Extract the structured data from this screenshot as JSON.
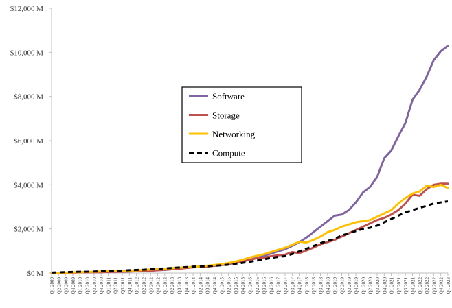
{
  "chart_data": {
    "type": "line",
    "title": "",
    "xlabel": "",
    "ylabel": "",
    "ylim": [
      0,
      12000
    ],
    "y_ticks": [
      {
        "value": 0,
        "label": "$0 M"
      },
      {
        "value": 2000,
        "label": "$2,000 M"
      },
      {
        "value": 4000,
        "label": "$4,000 M"
      },
      {
        "value": 6000,
        "label": "$6,000 M"
      },
      {
        "value": 8000,
        "label": "$8,000 M"
      },
      {
        "value": 10000,
        "label": "$10,000 M"
      },
      {
        "value": 12000,
        "label": "$12,000 M"
      }
    ],
    "grid": false,
    "legend_position": "center",
    "categories": [
      "Q1 2009",
      "Q2 2009",
      "Q3 2009",
      "Q4 2009",
      "Q1 2010",
      "Q2 2010",
      "Q3 2010",
      "Q4 2010",
      "Q1 2011",
      "Q2 2011",
      "Q3 2011",
      "Q4 2011",
      "Q1 2012",
      "Q2 2012",
      "Q3 2012",
      "Q4 2012",
      "Q1 2013",
      "Q2 2013",
      "Q3 2013",
      "Q4 2013",
      "Q1 2014",
      "Q2 2014",
      "Q3 2014",
      "Q4 2014",
      "Q1 2015",
      "Q2 2015",
      "Q3 2015",
      "Q4 2015",
      "Q1 2016",
      "Q2 2016",
      "Q3 2016",
      "Q4 2016",
      "Q1 2017",
      "Q2 2017",
      "Q3 2017",
      "Q4 2017",
      "Q1 2018",
      "Q2 2018",
      "Q3 2018",
      "Q4 2018",
      "Q1 2019",
      "Q2 2019",
      "Q3 2019",
      "Q4 2019",
      "Q1 2020",
      "Q2 2020",
      "Q3 2020",
      "Q4 2020",
      "Q1 2021",
      "Q2 2021",
      "Q3 2021",
      "Q4 2021",
      "Q1 2022",
      "Q2 2022",
      "Q3 2022",
      "Q4 2022",
      "Q1 2023"
    ],
    "series": [
      {
        "name": "Software",
        "color": "#8064A2",
        "dash": "solid",
        "values": [
          0,
          0,
          10,
          20,
          30,
          30,
          40,
          40,
          50,
          60,
          60,
          70,
          80,
          90,
          110,
          130,
          140,
          170,
          200,
          230,
          260,
          280,
          300,
          330,
          360,
          400,
          460,
          520,
          600,
          680,
          780,
          880,
          980,
          1080,
          1230,
          1400,
          1600,
          1850,
          2100,
          2350,
          2600,
          2650,
          2850,
          3200,
          3650,
          3900,
          4350,
          5200,
          5550,
          6200,
          6800,
          7850,
          8300,
          8900,
          9650,
          10050,
          10300
        ]
      },
      {
        "name": "Storage",
        "color": "#C0504D",
        "dash": "solid",
        "values": [
          0,
          0,
          10,
          20,
          30,
          30,
          40,
          40,
          50,
          60,
          60,
          70,
          80,
          90,
          100,
          130,
          150,
          180,
          200,
          230,
          260,
          270,
          290,
          330,
          370,
          420,
          470,
          530,
          600,
          670,
          700,
          760,
          800,
          830,
          950,
          900,
          1020,
          1150,
          1300,
          1400,
          1500,
          1650,
          1800,
          1950,
          2100,
          2250,
          2400,
          2500,
          2650,
          2850,
          3150,
          3550,
          3500,
          3800,
          4000,
          4050,
          4050
        ]
      },
      {
        "name": "Networking",
        "color": "#FFC000",
        "dash": "solid",
        "values": [
          0,
          10,
          20,
          30,
          40,
          50,
          60,
          70,
          80,
          90,
          100,
          110,
          120,
          140,
          160,
          180,
          200,
          220,
          240,
          260,
          280,
          300,
          330,
          360,
          400,
          450,
          520,
          600,
          700,
          780,
          850,
          950,
          1050,
          1150,
          1280,
          1420,
          1380,
          1500,
          1650,
          1850,
          1950,
          2100,
          2200,
          2300,
          2350,
          2400,
          2550,
          2700,
          2850,
          3150,
          3400,
          3600,
          3700,
          3950,
          3900,
          4000,
          3850
        ]
      },
      {
        "name": "Compute",
        "color": "#000000",
        "dash": "dashed",
        "values": [
          20,
          30,
          40,
          50,
          60,
          60,
          70,
          80,
          90,
          100,
          110,
          130,
          140,
          150,
          170,
          190,
          210,
          230,
          250,
          270,
          290,
          300,
          310,
          330,
          350,
          380,
          420,
          460,
          510,
          560,
          620,
          680,
          730,
          760,
          860,
          980,
          1100,
          1220,
          1350,
          1450,
          1550,
          1700,
          1800,
          1900,
          2000,
          2050,
          2150,
          2300,
          2450,
          2600,
          2750,
          2850,
          2950,
          3050,
          3150,
          3200,
          3250
        ]
      }
    ]
  }
}
